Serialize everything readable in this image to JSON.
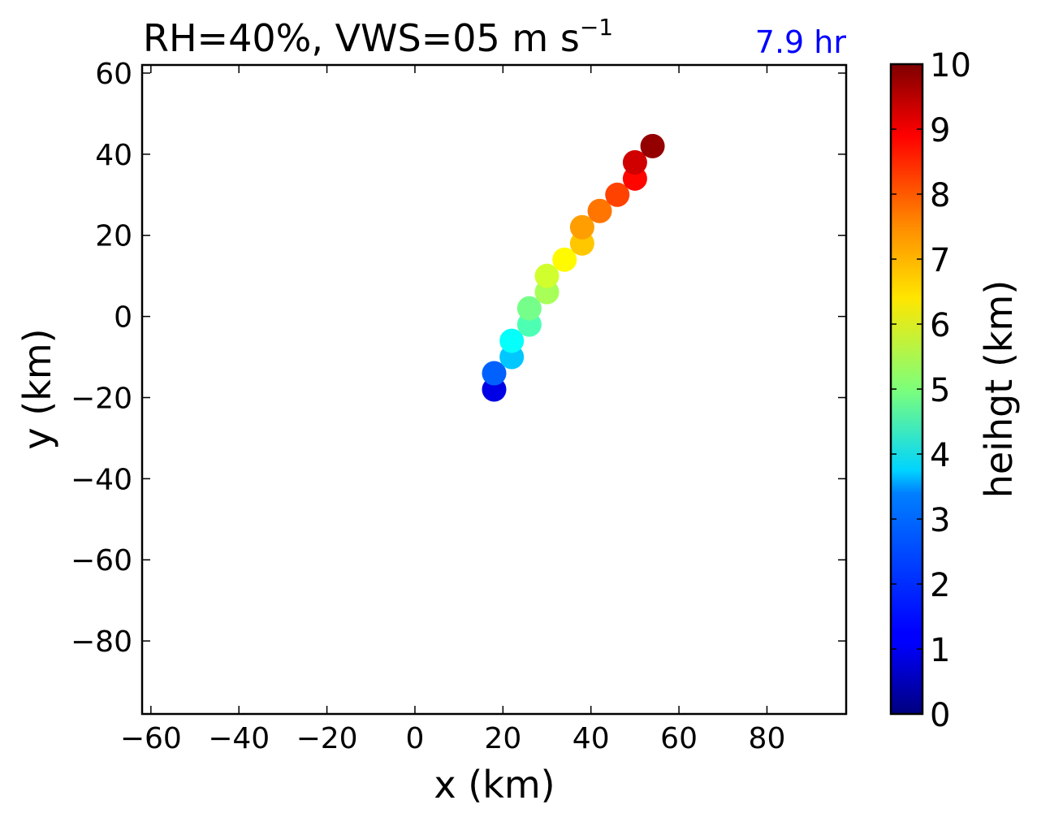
{
  "title": {
    "main": "RH=40%, VWS=05 m s",
    "unit_exponent": "−1",
    "annotation": "7.9 hr",
    "annotation_color": "#0000ff"
  },
  "chart_data": {
    "type": "scatter",
    "xlabel": "x (km)",
    "ylabel": "y (km)",
    "xlim": [
      -62,
      98
    ],
    "ylim": [
      -98,
      62
    ],
    "xticks": [
      -60,
      -40,
      -20,
      0,
      20,
      40,
      60,
      80
    ],
    "yticks": [
      60,
      40,
      20,
      0,
      -20,
      -40,
      -60,
      -80
    ],
    "grid": false,
    "colorbar": {
      "label": "heihgt (km)",
      "min": 0,
      "max": 10,
      "ticks": [
        0,
        1,
        2,
        3,
        4,
        5,
        6,
        7,
        8,
        9,
        10
      ],
      "colormap": "jet"
    },
    "points": [
      {
        "x": 18,
        "y": -18,
        "height": 1.0
      },
      {
        "x": 18,
        "y": -14,
        "height": 2.2
      },
      {
        "x": 22,
        "y": -10,
        "height": 3.2
      },
      {
        "x": 22,
        "y": -6,
        "height": 3.8
      },
      {
        "x": 26,
        "y": -2,
        "height": 4.5
      },
      {
        "x": 26,
        "y": 2,
        "height": 4.9
      },
      {
        "x": 30,
        "y": 6,
        "height": 5.4
      },
      {
        "x": 30,
        "y": 10,
        "height": 5.8
      },
      {
        "x": 34,
        "y": 14,
        "height": 6.3
      },
      {
        "x": 38,
        "y": 18,
        "height": 6.8
      },
      {
        "x": 38,
        "y": 22,
        "height": 7.2
      },
      {
        "x": 42,
        "y": 26,
        "height": 7.6
      },
      {
        "x": 46,
        "y": 30,
        "height": 8.1
      },
      {
        "x": 50,
        "y": 34,
        "height": 8.7
      },
      {
        "x": 50,
        "y": 38,
        "height": 9.2
      },
      {
        "x": 54,
        "y": 42,
        "height": 9.8
      }
    ]
  }
}
